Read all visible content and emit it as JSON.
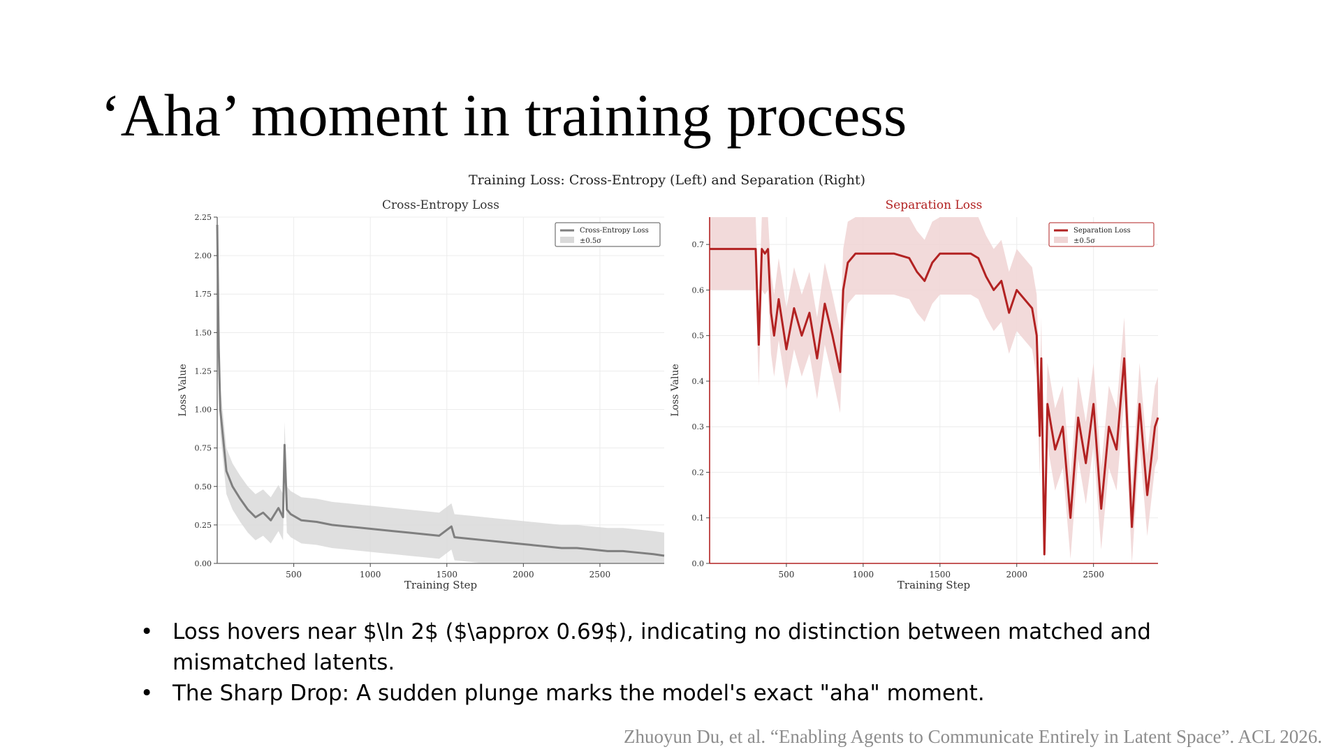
{
  "slide": {
    "title": "‘Aha’ moment in training process",
    "bullets": [
      "Loss hovers near $\\ln 2$ ($\\approx 0.69$), indicating no distinction between matched and mismatched latents.",
      "The Sharp Drop: A sudden plunge marks the model's exact \"aha\" moment."
    ],
    "bullet_glyph": "•",
    "citation": "Zhuoyun Du, et al. “Enabling Agents to Communicate Entirely in Latent Space”. ACL 2026."
  },
  "figure": {
    "suptitle": "Training Loss: Cross-Entropy (Left) and Separation (Right)"
  },
  "chart_data": [
    {
      "type": "line",
      "title": "Cross-Entropy Loss",
      "xlabel": "Training Step",
      "ylabel": "Loss Value",
      "xlim": [
        0,
        2920
      ],
      "ylim": [
        0,
        2.25
      ],
      "xticks": [
        500,
        1000,
        1500,
        2000,
        2500
      ],
      "yticks": [
        0.0,
        0.25,
        0.5,
        0.75,
        1.0,
        1.25,
        1.5,
        1.75,
        2.0,
        2.25
      ],
      "ytick_labels": [
        "0.00",
        "0.25",
        "0.50",
        "0.75",
        "1.00",
        "1.25",
        "1.50",
        "1.75",
        "2.00",
        "2.25"
      ],
      "grid": true,
      "legend_position": "top-right",
      "color": "#7f7f7f",
      "band_color": "#d9d9d9",
      "series": [
        {
          "name": "Cross-Entropy Loss",
          "x": [
            0,
            10,
            20,
            40,
            60,
            80,
            100,
            150,
            200,
            250,
            300,
            350,
            400,
            430,
            440,
            455,
            480,
            550,
            650,
            750,
            850,
            950,
            1050,
            1150,
            1250,
            1350,
            1450,
            1530,
            1550,
            1650,
            1750,
            1850,
            1950,
            2050,
            2150,
            2250,
            2350,
            2450,
            2550,
            2650,
            2750,
            2850,
            2920
          ],
          "y": [
            2.2,
            1.4,
            1.0,
            0.8,
            0.6,
            0.55,
            0.5,
            0.42,
            0.35,
            0.3,
            0.33,
            0.28,
            0.36,
            0.3,
            0.77,
            0.35,
            0.32,
            0.28,
            0.27,
            0.25,
            0.24,
            0.23,
            0.22,
            0.21,
            0.2,
            0.19,
            0.18,
            0.24,
            0.17,
            0.16,
            0.15,
            0.14,
            0.13,
            0.12,
            0.11,
            0.1,
            0.1,
            0.09,
            0.08,
            0.08,
            0.07,
            0.06,
            0.05
          ]
        }
      ],
      "band": {
        "name": "±0.5σ",
        "halfwidth": 0.15
      }
    },
    {
      "type": "line",
      "title": "Separation Loss",
      "xlabel": "Training Step",
      "ylabel": "Loss Value",
      "xlim": [
        0,
        2920
      ],
      "ylim": [
        0,
        0.76
      ],
      "xticks": [
        500,
        1000,
        1500,
        2000,
        2500
      ],
      "yticks": [
        0.0,
        0.1,
        0.2,
        0.3,
        0.4,
        0.5,
        0.6,
        0.7
      ],
      "ytick_labels": [
        "0.0",
        "0.1",
        "0.2",
        "0.3",
        "0.4",
        "0.5",
        "0.6",
        "0.7"
      ],
      "grid": true,
      "legend_position": "top-right",
      "color": "#b22222",
      "band_color": "#f0d4d4",
      "series": [
        {
          "name": "Separation Loss",
          "x": [
            0,
            100,
            200,
            300,
            320,
            340,
            360,
            380,
            400,
            420,
            450,
            500,
            550,
            600,
            650,
            700,
            750,
            800,
            850,
            870,
            900,
            950,
            1000,
            1100,
            1200,
            1300,
            1350,
            1400,
            1450,
            1500,
            1600,
            1700,
            1750,
            1800,
            1850,
            1900,
            1950,
            2000,
            2050,
            2100,
            2130,
            2150,
            2160,
            2180,
            2200,
            2250,
            2300,
            2350,
            2400,
            2450,
            2500,
            2550,
            2600,
            2650,
            2700,
            2750,
            2800,
            2850,
            2900,
            2920
          ],
          "y": [
            0.69,
            0.69,
            0.69,
            0.69,
            0.48,
            0.69,
            0.68,
            0.69,
            0.55,
            0.5,
            0.58,
            0.47,
            0.56,
            0.5,
            0.55,
            0.45,
            0.57,
            0.5,
            0.42,
            0.6,
            0.66,
            0.68,
            0.68,
            0.68,
            0.68,
            0.67,
            0.64,
            0.62,
            0.66,
            0.68,
            0.68,
            0.68,
            0.67,
            0.63,
            0.6,
            0.62,
            0.55,
            0.6,
            0.58,
            0.56,
            0.5,
            0.28,
            0.45,
            0.02,
            0.35,
            0.25,
            0.3,
            0.1,
            0.32,
            0.22,
            0.35,
            0.12,
            0.3,
            0.25,
            0.45,
            0.08,
            0.35,
            0.15,
            0.3,
            0.32
          ]
        }
      ],
      "band": {
        "name": "±0.5σ",
        "halfwidth": 0.09
      }
    }
  ]
}
